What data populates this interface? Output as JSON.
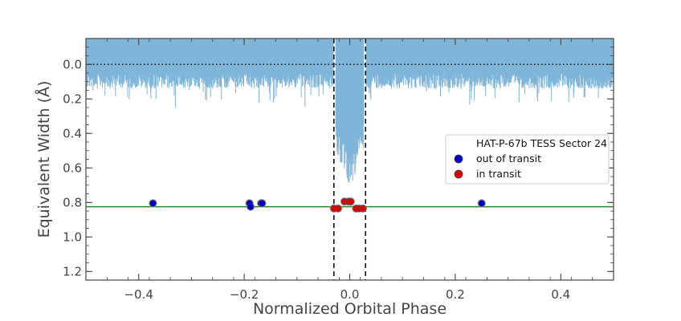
{
  "chart_data": {
    "type": "scatter",
    "xlabel": "Normalized Orbital Phase",
    "ylabel": "Equivalent Width (Å)",
    "xlim": [
      -0.5,
      0.5
    ],
    "ylim": [
      1.25,
      -0.15
    ],
    "y_inverted": true,
    "x_ticks": [
      -0.4,
      -0.2,
      0.0,
      0.2,
      0.4
    ],
    "x_tick_labels": [
      "−0.4",
      "−0.2",
      "0.0",
      "0.2",
      "0.4"
    ],
    "y_ticks": [
      0.0,
      0.2,
      0.4,
      0.6,
      0.8,
      1.0,
      1.2
    ],
    "y_tick_labels": [
      "0.0",
      "0.2",
      "0.4",
      "0.6",
      "0.8",
      "1.0",
      "1.2"
    ],
    "grid": false,
    "legend": {
      "placement": "center-right",
      "title": "HAT-P-67b TESS Sector 24",
      "entries": [
        {
          "label": "out of transit",
          "color": "#0000cc"
        },
        {
          "label": "in transit",
          "color": "#dd0000"
        }
      ]
    },
    "reference_lines": {
      "horizontal_dotted_y": 0.0,
      "horizontal_green_y": 0.825,
      "green_color": "#228b22",
      "vertical_dashed_x": [
        -0.03,
        0.03
      ]
    },
    "light_curve": {
      "color": "#7fb5d9",
      "baseline_depth": 0.15,
      "in_transit_depth": 0.5
    },
    "series": [
      {
        "name": "out of transit",
        "color": "#0000cc",
        "points": [
          {
            "x": -0.373,
            "y": 0.805
          },
          {
            "x": -0.19,
            "y": 0.805
          },
          {
            "x": -0.188,
            "y": 0.825
          },
          {
            "x": -0.168,
            "y": 0.805
          },
          {
            "x": -0.166,
            "y": 0.805
          },
          {
            "x": 0.25,
            "y": 0.805
          }
        ]
      },
      {
        "name": "in transit",
        "color": "#dd0000",
        "points": [
          {
            "x": -0.03,
            "y": 0.835
          },
          {
            "x": -0.022,
            "y": 0.835
          },
          {
            "x": -0.01,
            "y": 0.795
          },
          {
            "x": -0.002,
            "y": 0.795
          },
          {
            "x": 0.002,
            "y": 0.795
          },
          {
            "x": 0.012,
            "y": 0.835
          },
          {
            "x": 0.018,
            "y": 0.835
          },
          {
            "x": 0.025,
            "y": 0.835
          }
        ]
      }
    ]
  }
}
